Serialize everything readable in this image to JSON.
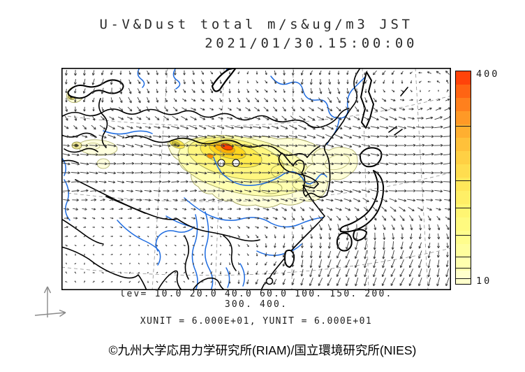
{
  "header": {
    "title_line1": "U-V&Dust total m/s&ug/m3 JST",
    "title_line2": "2021/01/30.15:00:00"
  },
  "legend": {
    "levels_label1": "lev= 10.0 20.0 40.0 60.0 100. 150. 200.",
    "levels_label2": "300. 400.",
    "units_label": "XUNIT = 6.000E+01, YUNIT = 6.000E+01"
  },
  "credit": {
    "text": "©九州大学応用力学研究所(RIAM)/国立環境研究所(NIES)"
  },
  "colorbar": {
    "max_label": "400",
    "min_label": "10",
    "min_value": 10,
    "max_value": 400,
    "tick_levels": [
      20,
      40,
      60,
      100,
      150,
      200,
      300
    ],
    "steps": 16,
    "bottom_color": "#FFFFD2",
    "top_color": "#FF3C00"
  },
  "map": {
    "wind_grid_step": 13,
    "arrow_color": "#3a3a3a",
    "river_color": "#1d6be0",
    "coast_color": "#000000",
    "graticule_color": "#909090",
    "dust_outline_color": "#99994d"
  },
  "chart_data": {
    "type": "heatmap",
    "title": "U-V&Dust total m/s&ug/m3 JST",
    "timestamp_jst": "2021/01/30.15:00:00",
    "quantity": "Dust total concentration (ug/m3, shaded/contoured) with U-V wind vectors (m/s)",
    "contour_levels": [
      10.0,
      20.0,
      40.0,
      60.0,
      100,
      150,
      200,
      300,
      400
    ],
    "colorbar": {
      "min": 10,
      "max": 400,
      "orientation": "vertical",
      "scale": "linear"
    },
    "xunit": "6.000E+01",
    "yunit": "6.000E+01",
    "region": "East Asia (Central Asia to Japan, India to Siberia)",
    "dust_maxima": [
      {
        "area": "Gobi Desert / Inner Mongolia plume (elongated W-E)",
        "approx_peak_ugm3": 400
      },
      {
        "area": "Tail of plume over North China / Bohai Sea",
        "approx_peak_ugm3": 40
      },
      {
        "area": "Sea of Japan / southern Korean Peninsula crescent",
        "approx_peak_ugm3": 20
      },
      {
        "area": "Lake Balkhash spot (NW corner)",
        "approx_peak_ugm3": 60
      },
      {
        "area": "Pamir / western Tarim spot (W edge)",
        "approx_peak_ugm3": 60
      }
    ],
    "wind_features": [
      {
        "feature": "broad westerly band across mid-latitudes, strongest over the dust plume"
      },
      {
        "feature": "counterclockwise (cyclonic) circulation northeast of Japan"
      },
      {
        "feature": "northerly flow south of Japan over the East China Sea turning southwest"
      },
      {
        "feature": "weak, disorganized winds over India and the Bay of Bengal"
      },
      {
        "feature": "north-northwesterly drift in the far northwest corner"
      }
    ]
  }
}
